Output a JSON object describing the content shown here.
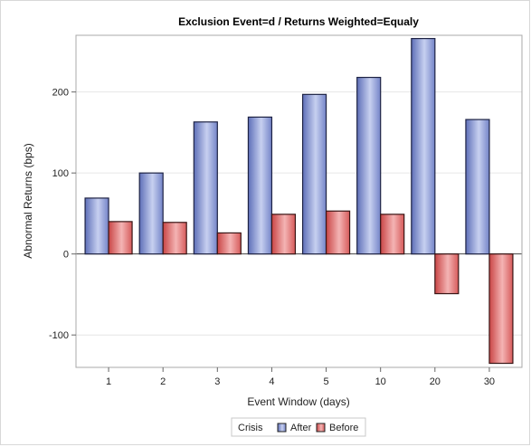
{
  "chart_data": {
    "type": "bar",
    "title": "Exclusion Event=d /  Returns Weighted=Equaly",
    "xlabel": "Event Window (days)",
    "ylabel": "Abnormal Returns (bps)",
    "categories": [
      "1",
      "2",
      "3",
      "4",
      "5",
      "10",
      "20",
      "30"
    ],
    "series": [
      {
        "name": "After",
        "values": [
          69,
          100,
          163,
          169,
          197,
          218,
          266,
          166
        ],
        "color": "#7080c4"
      },
      {
        "name": "Before",
        "values": [
          40,
          39,
          26,
          49,
          53,
          49,
          -49,
          -135
        ],
        "color": "#d85555"
      }
    ],
    "ylim": [
      -140,
      270
    ],
    "yticks": [
      -100,
      0,
      100,
      200
    ],
    "grid": true,
    "legend": {
      "title": "Crisis",
      "position": "bottom"
    }
  }
}
